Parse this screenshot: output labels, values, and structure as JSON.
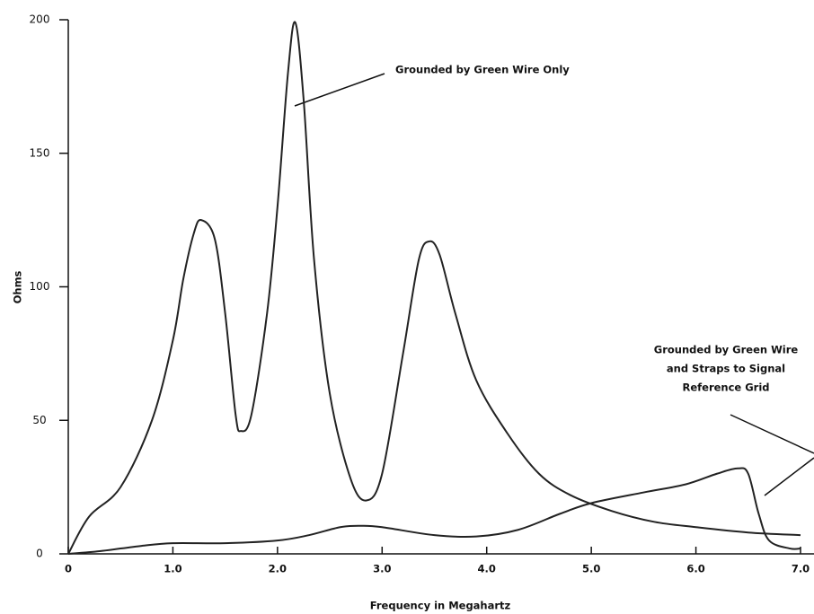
{
  "chart_data": {
    "type": "line",
    "x_label": "Frequency in Megahartz",
    "y_label": "Ohms",
    "xlim": [
      0,
      7
    ],
    "ylim": [
      0,
      200
    ],
    "xticks": [
      0,
      {
        "value": 1,
        "label": "1.0"
      },
      {
        "value": 2,
        "label": "2.0"
      },
      {
        "value": 3,
        "label": "3.0"
      },
      {
        "value": 4,
        "label": "4.0"
      },
      {
        "value": 5,
        "label": "5.0"
      },
      {
        "value": 6,
        "label": "6.0"
      },
      {
        "value": 7,
        "label": "7.0"
      }
    ],
    "yticks": [
      0,
      50,
      100,
      150,
      200
    ],
    "series": [
      {
        "color": "#222222",
        "x": [
          0,
          0.2,
          0.5,
          0.8,
          1.0,
          1.1,
          1.2,
          1.27,
          1.4,
          1.5,
          1.6,
          1.65,
          1.75,
          1.9,
          2.0,
          2.1,
          2.17,
          2.25,
          2.35,
          2.5,
          2.7,
          2.85,
          3.0,
          3.2,
          3.35,
          3.45,
          3.55,
          3.7,
          3.9,
          4.2,
          4.5,
          4.8,
          5.2,
          5.6,
          6.0,
          6.5,
          7.0
        ],
        "values": [
          0,
          14,
          25,
          50,
          80,
          103,
          120,
          125,
          118,
          90,
          52,
          46,
          52,
          90,
          130,
          180,
          199,
          170,
          110,
          60,
          28,
          20,
          30,
          75,
          110,
          117,
          112,
          90,
          65,
          45,
          30,
          22,
          16,
          12,
          10,
          8,
          7
        ]
      },
      {
        "color": "#222222",
        "x": [
          0,
          0.3,
          0.7,
          1.0,
          1.5,
          2.0,
          2.3,
          2.6,
          2.8,
          3.0,
          3.5,
          3.9,
          4.3,
          4.7,
          5.0,
          5.5,
          5.9,
          6.2,
          6.4,
          6.5,
          6.6,
          6.7,
          6.9,
          7.0
        ],
        "values": [
          0,
          1,
          3,
          4,
          4,
          5,
          7,
          10,
          10.5,
          10,
          7,
          6.5,
          9,
          15,
          19,
          23,
          26,
          30,
          32,
          30,
          15,
          5,
          2,
          2
        ]
      }
    ],
    "annotations": [
      {
        "lines": [
          "Grounded by Green Wire Only"
        ]
      },
      {
        "lines": [
          "Grounded by Green Wire",
          "and Straps to Signal",
          "Reference Grid"
        ]
      }
    ]
  }
}
